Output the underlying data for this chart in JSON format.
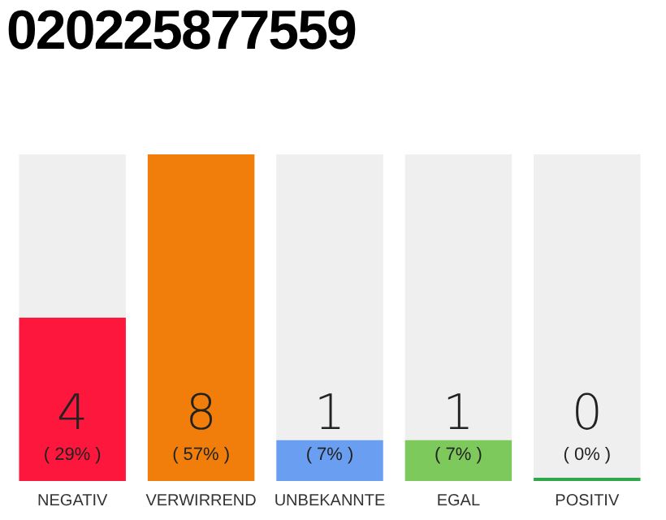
{
  "chart_data": {
    "type": "bar",
    "title": "020225877559",
    "categories": [
      "NEGATIV",
      "VERWIRREND",
      "UNBEKANNTE",
      "EGAL",
      "POSITIV"
    ],
    "series": [
      {
        "values": [
          4,
          8,
          1,
          1,
          0
        ],
        "colors": [
          "#fe173d",
          "#f17e0b",
          "#6a9ef0",
          "#7dc95c",
          "#2ea84a"
        ],
        "value_labels": [
          "4\n( 29% )",
          "8\n( 57% )",
          "1\n( 7% )",
          "1\n( 7% )",
          "0\n( 0% )"
        ]
      },
      {
        "values": [
          4,
          0,
          7,
          7,
          8
        ],
        "color": "#efefef"
      }
    ],
    "stacked": true,
    "ylim": [
      0,
      8
    ],
    "tick_labels": "x",
    "grid": false,
    "legend": false
  }
}
